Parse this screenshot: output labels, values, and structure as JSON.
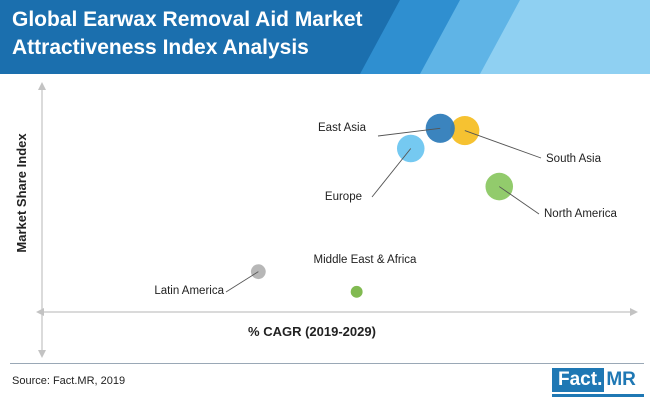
{
  "header": {
    "title_line1": "Global Earwax Removal Aid Market",
    "title_line2": "Attractiveness Index Analysis",
    "banner_color": "#1b6fae",
    "stripe_colors": [
      "#2f8fd0",
      "#5fb4e6",
      "#8fd0f2"
    ]
  },
  "chart_data": {
    "type": "scatter",
    "title": "",
    "xlabel": "% CAGR  (2019-2029)",
    "ylabel": "Market Share Index",
    "bubbles": true,
    "axis_ticks_shown": false,
    "points": [
      {
        "label": "Latin America",
        "x": 2.2,
        "y": 1.8,
        "size": 1,
        "color": "#b3b3b3"
      },
      {
        "label": "Middle East & Africa",
        "x": 3.2,
        "y": 0.9,
        "size": 0.6,
        "color": "#7ab648"
      },
      {
        "label": "Europe",
        "x": 3.75,
        "y": 7.3,
        "size": 4,
        "color": "#6ec6f0"
      },
      {
        "label": "South Asia",
        "x": 4.3,
        "y": 8.1,
        "size": 4.5,
        "color": "#f6bf26"
      },
      {
        "label": "East Asia",
        "x": 4.05,
        "y": 8.2,
        "size": 4.5,
        "color": "#2a7ab8"
      },
      {
        "label": "North America",
        "x": 4.65,
        "y": 5.6,
        "size": 4,
        "color": "#8cc864"
      }
    ]
  },
  "footer": {
    "source": "Source: Fact.MR, 2019",
    "logo_part1": "Fact.",
    "logo_part2": "MR"
  }
}
